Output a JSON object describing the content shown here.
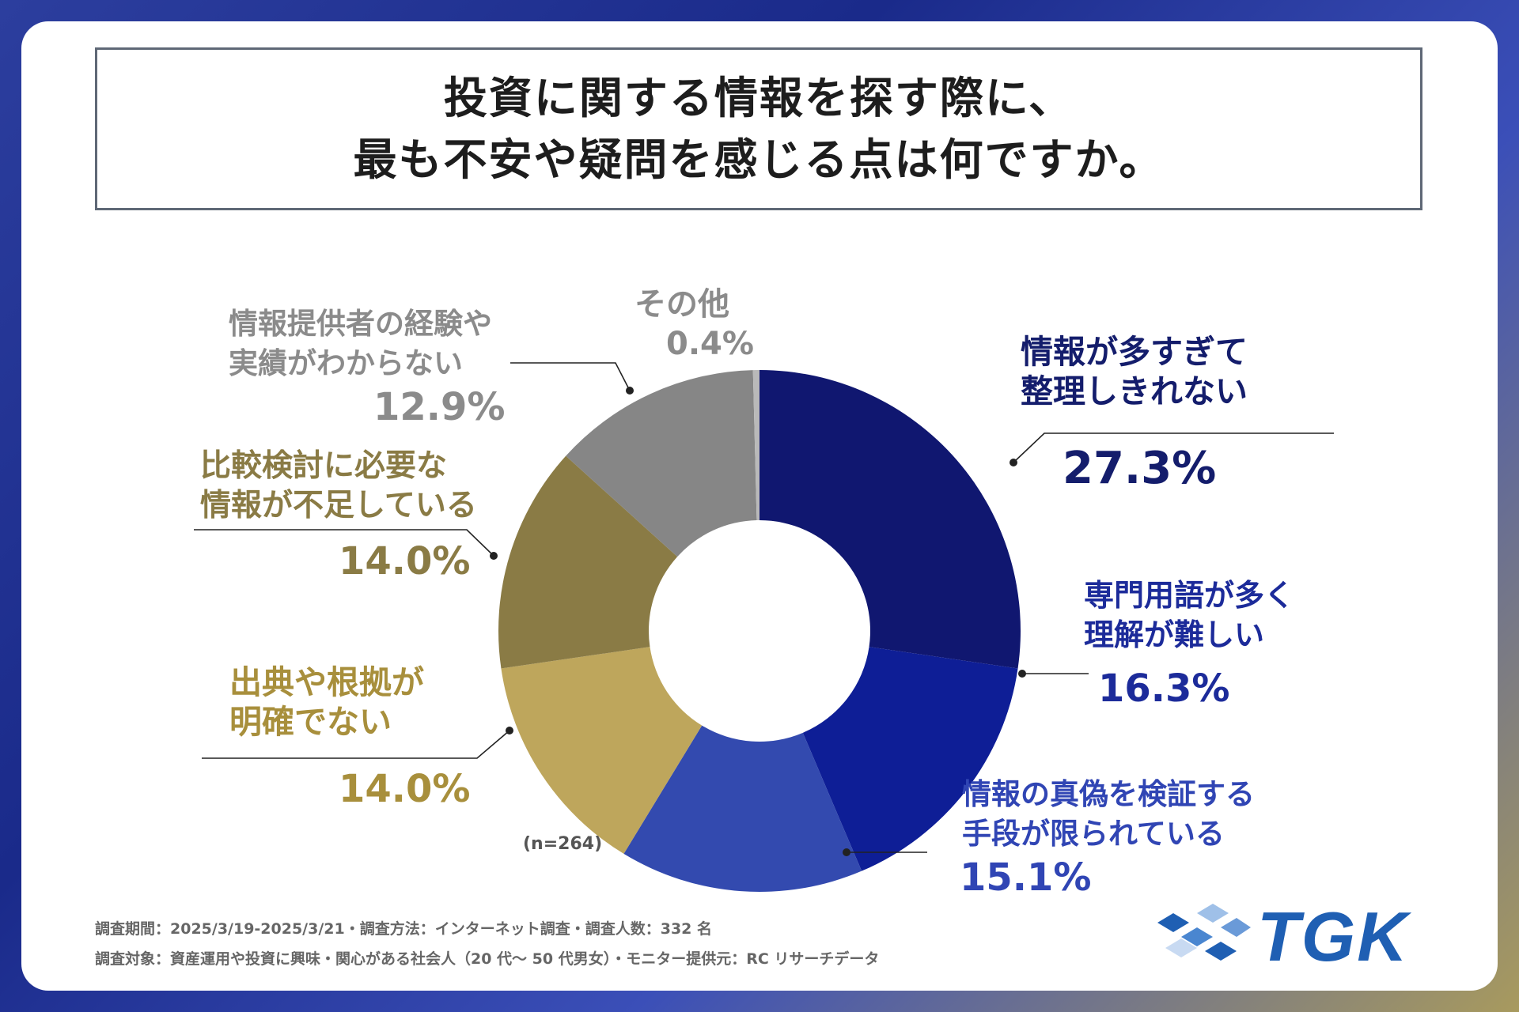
{
  "title": {
    "line1": "投資に関する情報を探す際に、",
    "line2": "最も不安や疑問を感じる点は何ですか。"
  },
  "chart_data": {
    "type": "pie",
    "donut": true,
    "title": "投資に関する情報を探す際に、最も不安や疑問を感じる点は何ですか。",
    "n_label": "(n=264)",
    "slices": [
      {
        "label_line1": "情報が多すぎて",
        "label_line2": "整理しきれない",
        "value": 27.3,
        "pct_label": "27.3%",
        "color": "#101770"
      },
      {
        "label_line1": "専門用語が多く",
        "label_line2": "理解が難しい",
        "value": 16.3,
        "pct_label": "16.3%",
        "color": "#0e1e96"
      },
      {
        "label_line1": "情報の真偽を検証する",
        "label_line2": "手段が限られている",
        "value": 15.1,
        "pct_label": "15.1%",
        "color": "#334aaf"
      },
      {
        "label_line1": "出典や根拠が",
        "label_line2": "明確でない",
        "value": 14.0,
        "pct_label": "14.0%",
        "color": "#bea65c"
      },
      {
        "label_line1": "比較検討に必要な",
        "label_line2": "情報が不足している",
        "value": 14.0,
        "pct_label": "14.0%",
        "color": "#8a7b45"
      },
      {
        "label_line1": "情報提供者の経験や",
        "label_line2": "実績がわからない",
        "value": 12.9,
        "pct_label": "12.9%",
        "color": "#868686"
      },
      {
        "label_line1": "その他",
        "label_line2": "",
        "value": 0.4,
        "pct_label": "0.4%",
        "color": "#b9b9b9"
      }
    ]
  },
  "label_colors": {
    "navy": "#141d6c",
    "blue": "#1c2b9a",
    "mid_blue": "#3045b4",
    "gold": "#a88f3c",
    "olive": "#8a7b45",
    "gray": "#8b8b8b"
  },
  "footer": {
    "line1": "調査期間：2025/3/19-2025/3/21・調査方法：インターネット調査・調査人数：332 名",
    "line2": "調査対象：資産運用や投資に興味・関心がある社会人（20 代〜 50 代男女）・モニター提供元：RC リサーチデータ"
  },
  "logo": {
    "text": "TGK"
  }
}
